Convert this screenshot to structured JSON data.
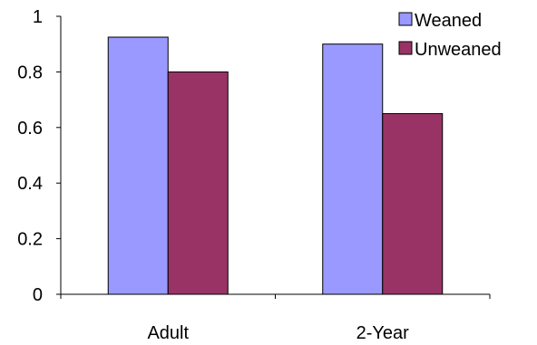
{
  "chart_data": {
    "type": "bar",
    "categories": [
      "Adult",
      "2-Year"
    ],
    "series": [
      {
        "name": "Weaned",
        "values": [
          0.925,
          0.9
        ],
        "color": "#9999ff"
      },
      {
        "name": "Unweaned",
        "values": [
          0.8,
          0.65
        ],
        "color": "#993366"
      }
    ],
    "yticks": [
      "0",
      "0.2",
      "0.4",
      "0.6",
      "0.8",
      "1"
    ],
    "ylim": [
      0,
      1
    ],
    "title": "",
    "xlabel": "",
    "ylabel": "",
    "grid": false,
    "legend_position": "top-right"
  }
}
